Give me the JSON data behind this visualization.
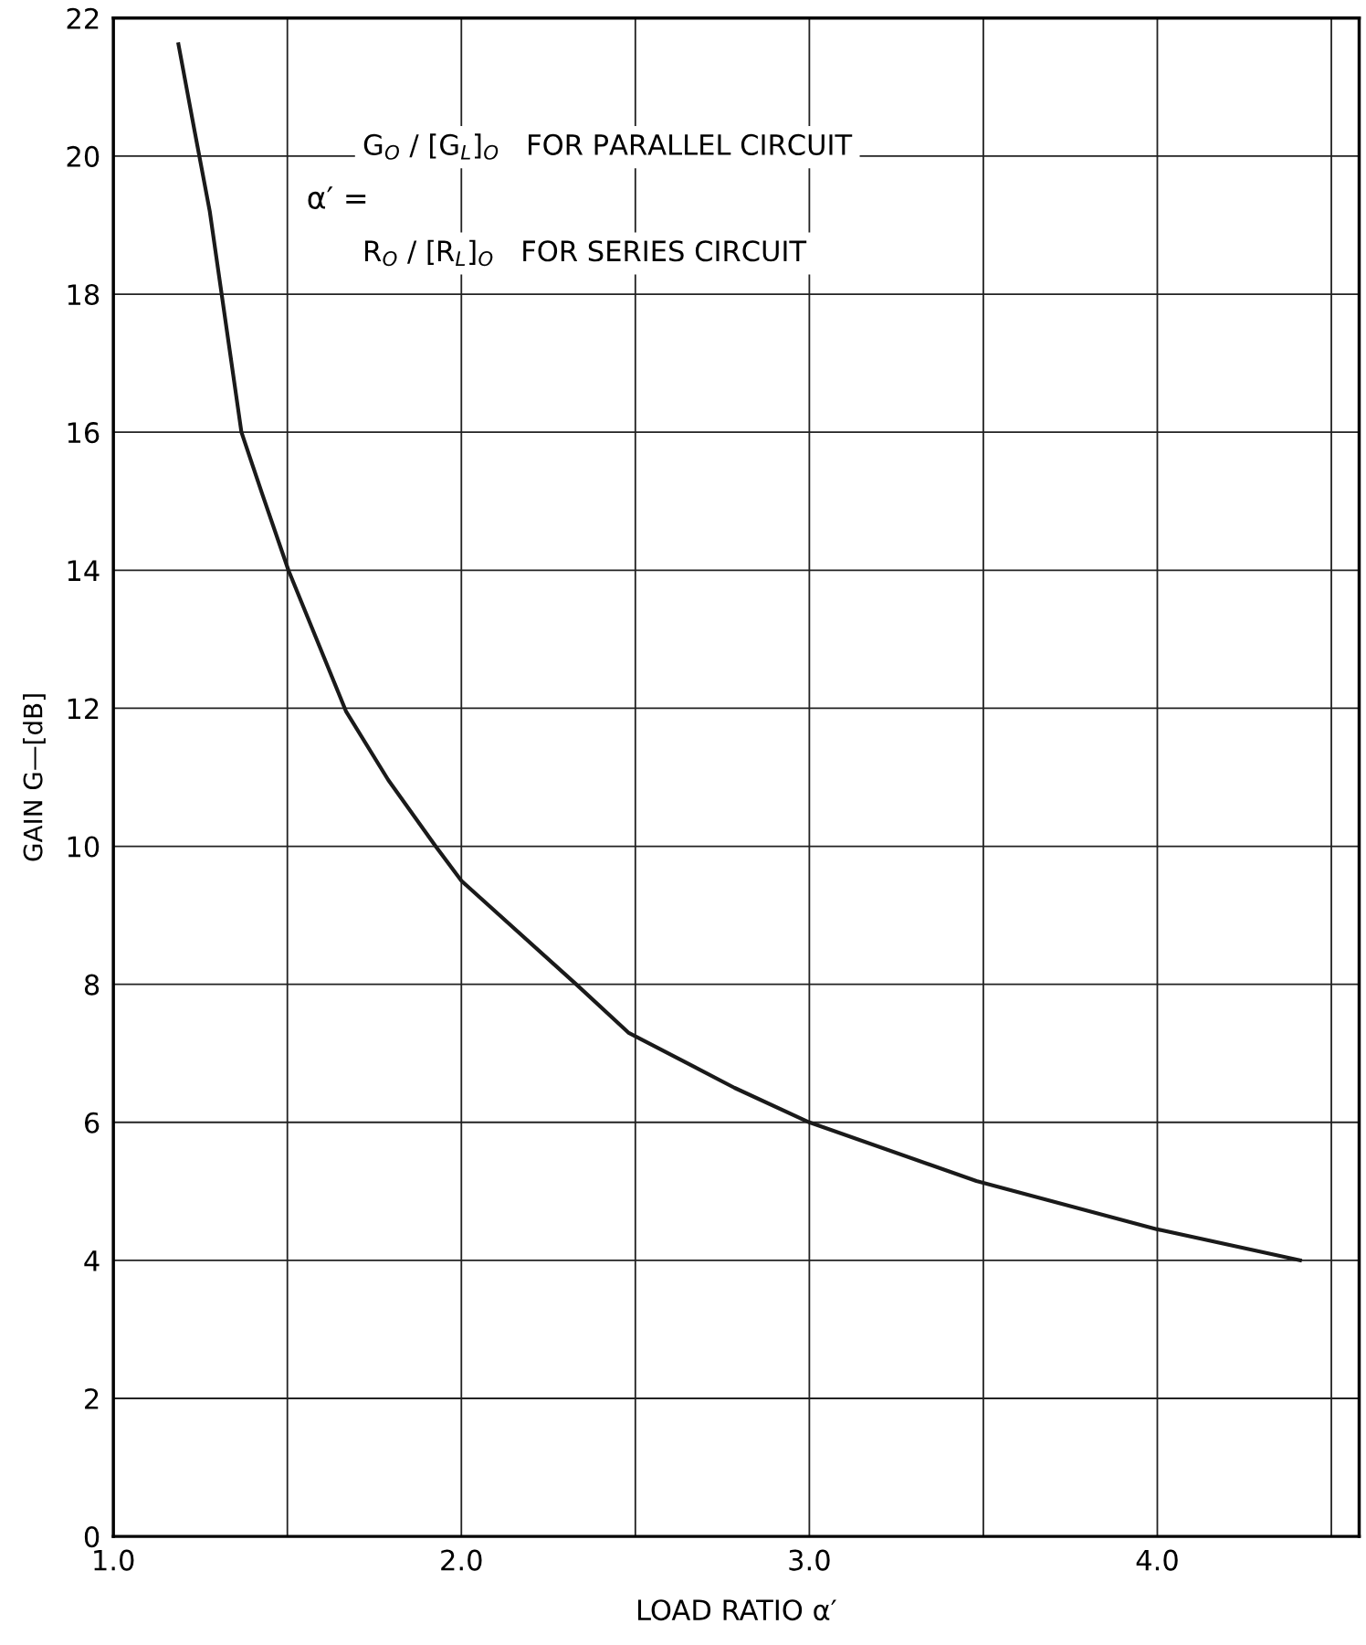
{
  "chart_data": {
    "type": "line",
    "xlabel": "LOAD RATIO α′",
    "ylabel": "GAIN G—[dB]",
    "x": [
      1.187,
      1.232,
      1.277,
      1.368,
      1.428,
      1.503,
      1.669,
      1.79,
      1.926,
      2.0,
      2.33,
      2.48,
      2.785,
      3.0,
      3.48,
      4.0,
      4.41
    ],
    "series": [
      {
        "color": "#1a1a1a",
        "values": [
          21.62,
          20.4,
          19.2,
          16.0,
          15.1,
          14.0,
          11.95,
          10.96,
          10.0,
          9.5,
          8.0,
          7.3,
          6.5,
          6.0,
          5.15,
          4.45,
          4.0
        ]
      }
    ],
    "xlim": [
      1.0,
      4.58
    ],
    "xticks": [
      {
        "value": 1.0,
        "label": "1.0"
      },
      {
        "value": 1.5,
        "label": null
      },
      {
        "value": 2.0,
        "label": "2.0"
      },
      {
        "value": 2.5,
        "label": null
      },
      {
        "value": 3.0,
        "label": "3.0"
      },
      {
        "value": 3.5,
        "label": null
      },
      {
        "value": 4.0,
        "label": "4.0"
      },
      {
        "value": 4.5,
        "label": null
      }
    ],
    "ylim": [
      0,
      22
    ],
    "yticks": [
      0,
      2,
      4,
      6,
      8,
      10,
      12,
      14,
      16,
      18,
      20,
      22
    ],
    "grid": true,
    "marker": "none",
    "line_style": "solid",
    "annotations": [
      "α′ =",
      "G$_{O}$ / [G$_{L}$]$_{O}$   FOR PARALLEL CIRCUIT",
      "R$_{O}$ / [R$_{L}$]$_{O}$   FOR SERIES CIRCUIT"
    ]
  }
}
